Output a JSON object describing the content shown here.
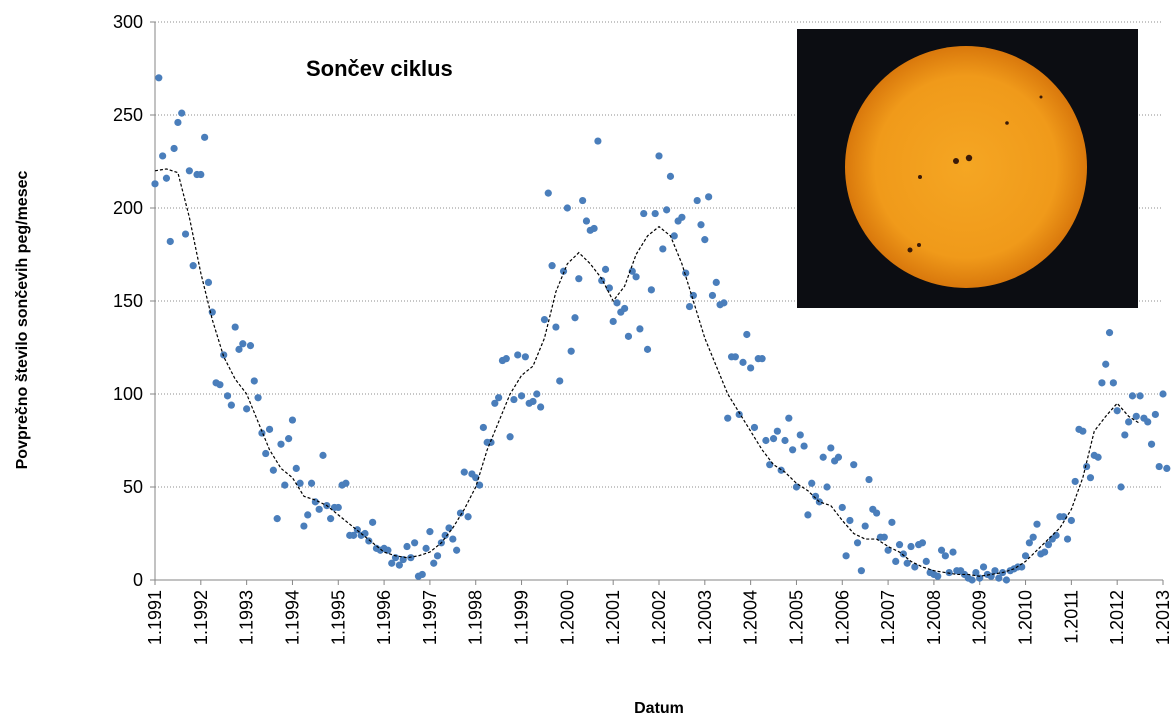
{
  "chart_data": {
    "type": "scatter",
    "title": "Sončev ciklus",
    "x_label": "Datum",
    "y_label": "Povprečno število sončevih peg/mesec",
    "ylim": [
      0,
      300
    ],
    "yticks": [
      0,
      50,
      100,
      150,
      200,
      250,
      300
    ],
    "xlim": [
      "1.1991",
      "1.2013"
    ],
    "xticks": [
      "1.1991",
      "1.1992",
      "1.1993",
      "1.1994",
      "1.1995",
      "1.1996",
      "1.1997",
      "1.1998",
      "1.1999",
      "1.2000",
      "1.2001",
      "1.2002",
      "1.2003",
      "1.2004",
      "1.2005",
      "1.2006",
      "1.2007",
      "1.2008",
      "1.2009",
      "1.2010",
      "1.2011",
      "1.2012",
      "1.2013"
    ],
    "grid": true,
    "series": [
      {
        "kind": "points",
        "color": "#4a7ebb",
        "x": [
          "1.1991",
          "2.1991",
          "3.1991",
          "4.1991",
          "5.1991",
          "6.1991",
          "7.1991",
          "8.1991",
          "9.1991",
          "10.1991",
          "11.1991",
          "12.1991",
          "1.1992",
          "2.1992",
          "3.1992",
          "4.1992",
          "5.1992",
          "6.1992",
          "7.1992",
          "8.1992",
          "9.1992",
          "10.1992",
          "11.1992",
          "12.1992",
          "1.1993",
          "2.1993",
          "3.1993",
          "4.1993",
          "5.1993",
          "6.1993",
          "7.1993",
          "8.1993",
          "9.1993",
          "10.1993",
          "11.1993",
          "12.1993",
          "1.1994",
          "2.1994",
          "3.1994",
          "4.1994",
          "5.1994",
          "6.1994",
          "7.1994",
          "8.1994",
          "9.1994",
          "10.1994",
          "11.1994",
          "12.1994",
          "1.1995",
          "2.1995",
          "3.1995",
          "4.1995",
          "5.1995",
          "6.1995",
          "7.1995",
          "8.1995",
          "9.1995",
          "10.1995",
          "11.1995",
          "12.1995",
          "1.1996",
          "2.1996",
          "3.1996",
          "4.1996",
          "5.1996",
          "6.1996",
          "7.1996",
          "8.1996",
          "9.1996",
          "10.1996",
          "11.1996",
          "12.1996",
          "1.1997",
          "2.1997",
          "3.1997",
          "4.1997",
          "5.1997",
          "6.1997",
          "7.1997",
          "8.1997",
          "9.1997",
          "10.1997",
          "11.1997",
          "12.1997",
          "1.1998",
          "2.1998",
          "3.1998",
          "4.1998",
          "5.1998",
          "6.1998",
          "7.1998",
          "8.1998",
          "9.1998",
          "10.1998",
          "11.1998",
          "12.1998",
          "1.1999",
          "2.1999",
          "3.1999",
          "4.1999",
          "5.1999",
          "6.1999",
          "7.1999",
          "8.1999",
          "9.1999",
          "10.1999",
          "11.1999",
          "12.1999",
          "1.2000",
          "2.2000",
          "3.2000",
          "4.2000",
          "5.2000",
          "6.2000",
          "7.2000",
          "8.2000",
          "9.2000",
          "10.2000",
          "11.2000",
          "12.2000",
          "1.2001",
          "2.2001",
          "3.2001",
          "4.2001",
          "5.2001",
          "6.2001",
          "7.2001",
          "8.2001",
          "9.2001",
          "10.2001",
          "11.2001",
          "12.2001",
          "1.2002",
          "2.2002",
          "3.2002",
          "4.2002",
          "5.2002",
          "6.2002",
          "7.2002",
          "8.2002",
          "9.2002",
          "10.2002",
          "11.2002",
          "12.2002",
          "1.2003",
          "2.2003",
          "3.2003",
          "4.2003",
          "5.2003",
          "6.2003",
          "7.2003",
          "8.2003",
          "9.2003",
          "10.2003",
          "11.2003",
          "12.2003",
          "1.2004",
          "2.2004",
          "3.2004",
          "4.2004",
          "5.2004",
          "6.2004",
          "7.2004",
          "8.2004",
          "9.2004",
          "10.2004",
          "11.2004",
          "12.2004",
          "1.2005",
          "2.2005",
          "3.2005",
          "4.2005",
          "5.2005",
          "6.2005",
          "7.2005",
          "8.2005",
          "9.2005",
          "10.2005",
          "11.2005",
          "12.2005",
          "1.2006",
          "2.2006",
          "3.2006",
          "4.2006",
          "5.2006",
          "6.2006",
          "7.2006",
          "8.2006",
          "9.2006",
          "10.2006",
          "11.2006",
          "12.2006",
          "1.2007",
          "2.2007",
          "3.2007",
          "4.2007",
          "5.2007",
          "6.2007",
          "7.2007",
          "8.2007",
          "9.2007",
          "10.2007",
          "11.2007",
          "12.2007",
          "1.2008",
          "2.2008",
          "3.2008",
          "4.2008",
          "5.2008",
          "6.2008",
          "7.2008",
          "8.2008",
          "9.2008",
          "10.2008",
          "11.2008",
          "12.2008",
          "1.2009",
          "2.2009",
          "3.2009",
          "4.2009",
          "5.2009",
          "6.2009",
          "7.2009",
          "8.2009",
          "9.2009",
          "10.2009",
          "11.2009",
          "12.2009",
          "1.2010",
          "2.2010",
          "3.2010",
          "4.2010",
          "5.2010",
          "6.2010",
          "7.2010",
          "8.2010",
          "9.2010",
          "10.2010",
          "11.2010",
          "12.2010",
          "1.2011",
          "2.2011",
          "3.2011",
          "4.2011",
          "5.2011",
          "6.2011",
          "7.2011",
          "8.2011",
          "9.2011",
          "10.2011",
          "11.2011",
          "12.2011",
          "1.2012",
          "2.2012",
          "3.2012",
          "4.2012",
          "5.2012",
          "6.2012",
          "7.2012",
          "8.2012",
          "9.2012",
          "10.2012",
          "11.2012",
          "12.2012",
          "1.2013",
          "2.2013"
        ],
        "values": [
          213,
          270,
          228,
          216,
          182,
          232,
          246,
          251,
          186,
          220,
          169,
          218,
          218,
          238,
          160,
          144,
          106,
          105,
          121,
          99,
          94,
          136,
          124,
          127,
          92,
          126,
          107,
          98,
          79,
          68,
          81,
          59,
          33,
          73,
          51,
          76,
          86,
          60,
          52,
          29,
          35,
          52,
          42,
          38,
          67,
          40,
          33,
          39,
          39,
          51,
          52,
          24,
          24,
          27,
          24,
          25,
          21,
          31,
          17,
          16,
          17,
          16,
          9,
          12,
          8,
          11,
          18,
          12,
          20,
          2,
          3,
          17,
          26,
          9,
          13,
          20,
          24,
          28,
          22,
          16,
          36,
          58,
          34,
          57,
          55,
          51,
          82,
          74,
          74,
          95,
          98,
          118,
          119,
          77,
          97,
          121,
          99,
          120,
          95,
          96,
          100,
          93,
          140,
          208,
          169,
          136,
          107,
          166,
          200,
          123,
          141,
          162,
          204,
          193,
          188,
          189,
          236,
          161,
          167,
          157,
          139,
          149,
          144,
          146,
          131,
          166,
          163,
          135,
          197,
          124,
          156,
          197,
          228,
          178,
          199,
          217,
          185,
          193,
          195,
          165,
          147,
          153,
          204,
          191,
          183,
          206,
          153,
          160,
          148,
          149,
          87,
          120,
          120,
          89,
          117,
          132,
          114,
          82,
          119,
          119,
          75,
          62,
          76,
          80,
          59,
          75,
          87,
          70,
          50,
          78,
          72,
          35,
          52,
          45,
          42,
          66,
          50,
          71,
          64,
          66,
          39,
          13,
          32,
          62,
          20,
          5,
          29,
          54,
          38,
          36,
          23,
          23,
          16,
          31,
          10,
          19,
          14,
          9,
          18,
          7,
          19,
          20,
          10,
          4,
          3,
          2,
          16,
          13,
          4,
          15,
          5,
          5,
          3,
          1,
          0,
          4,
          1,
          7,
          3,
          2,
          5,
          1,
          4,
          0,
          5,
          6,
          7,
          7,
          13,
          20,
          23,
          30,
          14,
          15,
          19,
          22,
          24,
          34,
          34,
          22,
          32,
          53,
          81,
          80,
          61,
          55,
          67,
          66,
          106,
          116,
          133,
          106,
          91,
          50,
          78,
          85,
          99,
          88,
          99,
          87,
          85,
          73,
          89,
          61,
          100,
          60
        ]
      },
      {
        "kind": "dashed-line",
        "color": "#000000",
        "x": [
          "1.1991",
          "4.1991",
          "7.1991",
          "10.1991",
          "1.1992",
          "4.1992",
          "7.1992",
          "10.1992",
          "1.1993",
          "4.1993",
          "7.1993",
          "10.1993",
          "1.1994",
          "4.1994",
          "7.1994",
          "10.1994",
          "1.1995",
          "4.1995",
          "7.1995",
          "10.1995",
          "1.1996",
          "4.1996",
          "7.1996",
          "10.1996",
          "1.1997",
          "4.1997",
          "7.1997",
          "10.1997",
          "1.1998",
          "4.1998",
          "7.1998",
          "10.1998",
          "1.1999",
          "4.1999",
          "7.1999",
          "10.1999",
          "1.2000",
          "4.2000",
          "7.2000",
          "10.2000",
          "1.2001",
          "4.2001",
          "7.2001",
          "10.2001",
          "1.2002",
          "4.2002",
          "7.2002",
          "10.2002",
          "1.2003",
          "4.2003",
          "7.2003",
          "10.2003",
          "1.2004",
          "4.2004",
          "7.2004",
          "10.2004",
          "1.2005",
          "4.2005",
          "7.2005",
          "10.2005",
          "1.2006",
          "4.2006",
          "7.2006",
          "10.2006",
          "1.2007",
          "4.2007",
          "7.2007",
          "10.2007",
          "1.2008",
          "4.2008",
          "7.2008",
          "10.2008",
          "1.2009",
          "4.2009",
          "7.2009",
          "10.2009",
          "1.2010",
          "4.2010",
          "7.2010",
          "10.2010",
          "1.2011",
          "4.2011",
          "7.2011",
          "10.2011",
          "1.2012",
          "4.2012",
          "7.2012"
        ],
        "values": [
          220,
          221,
          219,
          195,
          165,
          140,
          120,
          108,
          100,
          85,
          70,
          60,
          55,
          45,
          43,
          40,
          35,
          30,
          25,
          20,
          15,
          13,
          12,
          13,
          15,
          20,
          28,
          38,
          50,
          70,
          85,
          100,
          110,
          115,
          130,
          155,
          170,
          176,
          170,
          162,
          150,
          158,
          175,
          185,
          190,
          185,
          170,
          150,
          130,
          115,
          100,
          90,
          80,
          70,
          62,
          58,
          52,
          48,
          42,
          40,
          32,
          25,
          22,
          22,
          18,
          15,
          10,
          7,
          5,
          4,
          3,
          3,
          2,
          3,
          4,
          6,
          10,
          16,
          22,
          28,
          38,
          55,
          80,
          88,
          95,
          88,
          84
        ]
      }
    ]
  }
}
